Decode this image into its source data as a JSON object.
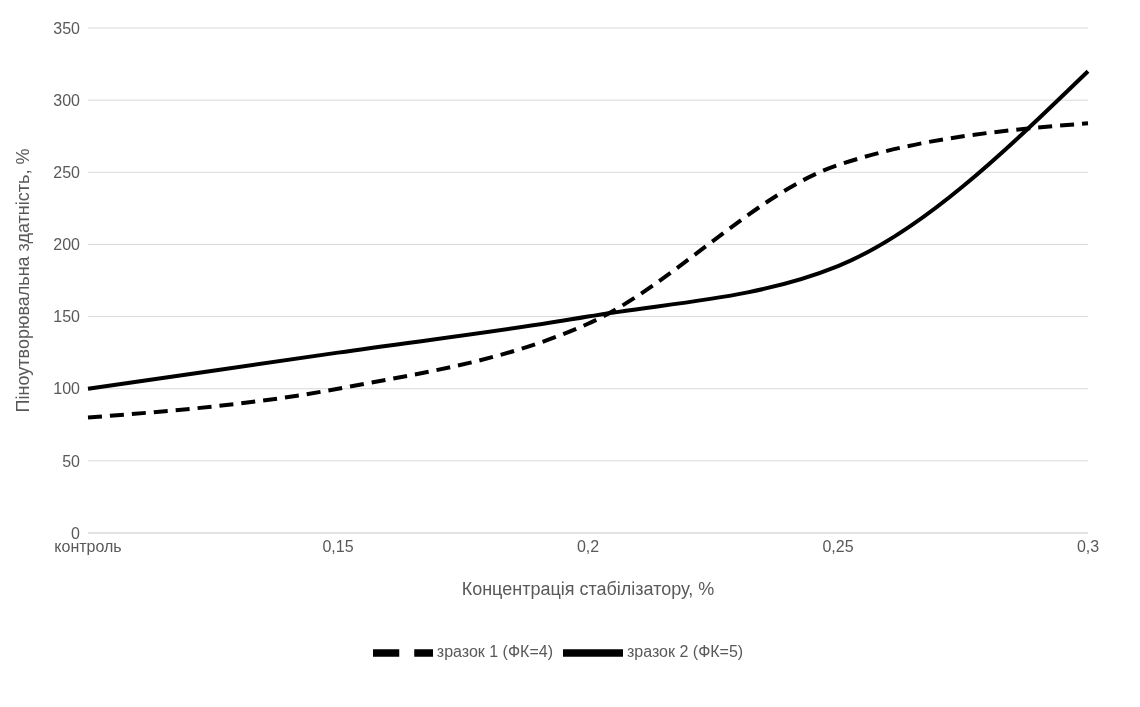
{
  "chart_data": {
    "type": "line",
    "xlabel": "Концентрація стабілізатору, %",
    "ylabel": "Піноутворювальна здатність, %",
    "categories": [
      "контроль",
      "0,15",
      "0,2",
      "0,25",
      "0,3"
    ],
    "series": [
      {
        "name": "зразок 1 (ФК=4)",
        "color": "#000000",
        "line_style": "dashed",
        "values": [
          80,
          100,
          145,
          255,
          284
        ]
      },
      {
        "name": "зразок 2 (ФК=5)",
        "color": "#000000",
        "line_style": "solid",
        "values": [
          100,
          125,
          150,
          185,
          320
        ]
      }
    ],
    "ylim": [
      0,
      350
    ],
    "yticks": [
      0,
      50,
      100,
      150,
      200,
      250,
      300,
      350
    ],
    "grid": "y",
    "legend": "bottom",
    "marker": "none"
  }
}
